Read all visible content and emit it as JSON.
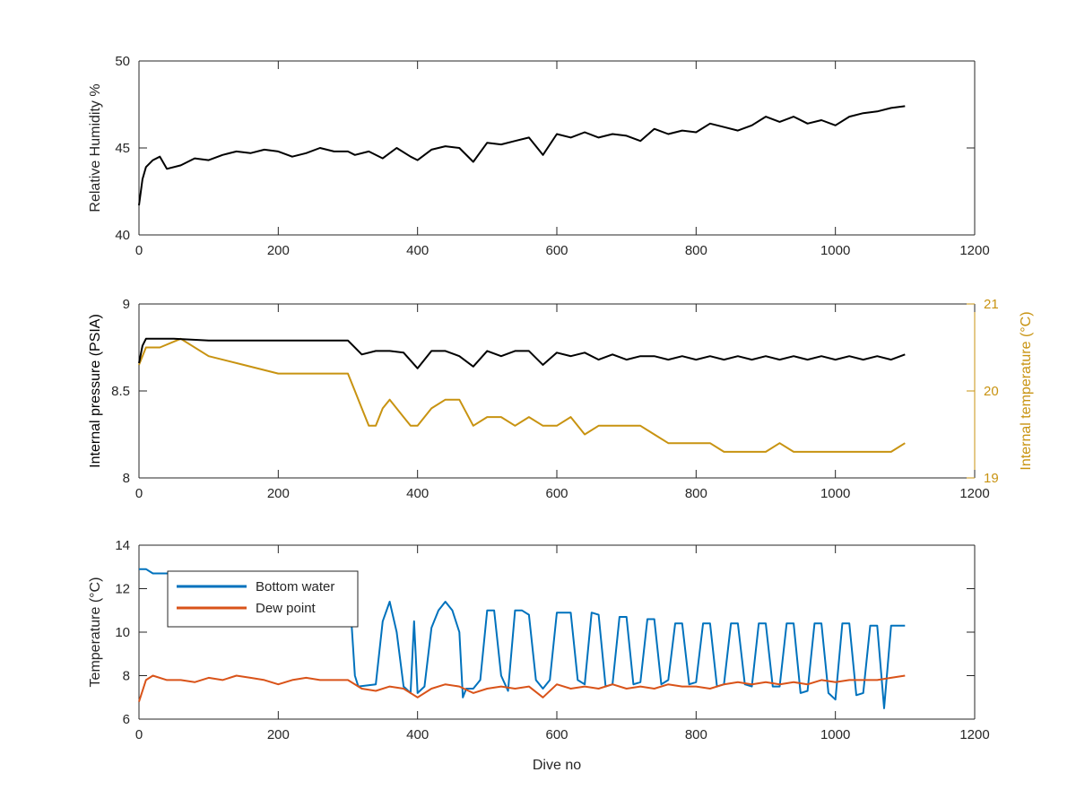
{
  "chart_data": [
    {
      "type": "line",
      "ylabel": "Relative Humidity %",
      "xlim": [
        0,
        1200
      ],
      "ylim": [
        40,
        50
      ],
      "xticks": [
        "0",
        "200",
        "400",
        "600",
        "800",
        "1000",
        "1200"
      ],
      "yticks": [
        "40",
        "45",
        "50"
      ],
      "series": [
        {
          "color": "#000000",
          "x": [
            0,
            5,
            10,
            20,
            30,
            40,
            60,
            80,
            100,
            120,
            140,
            160,
            180,
            200,
            220,
            240,
            260,
            280,
            300,
            310,
            330,
            350,
            370,
            390,
            400,
            420,
            440,
            460,
            480,
            500,
            520,
            540,
            560,
            580,
            600,
            620,
            640,
            660,
            680,
            700,
            720,
            740,
            760,
            780,
            800,
            820,
            840,
            860,
            880,
            900,
            920,
            940,
            960,
            980,
            1000,
            1020,
            1040,
            1060,
            1080,
            1100
          ],
          "y": [
            41.7,
            43.2,
            43.9,
            44.3,
            44.5,
            43.8,
            44.0,
            44.4,
            44.3,
            44.6,
            44.8,
            44.7,
            44.9,
            44.8,
            44.5,
            44.7,
            45.0,
            44.8,
            44.8,
            44.6,
            44.8,
            44.4,
            45.0,
            44.5,
            44.3,
            44.9,
            45.1,
            45.0,
            44.2,
            45.3,
            45.2,
            45.4,
            45.6,
            44.6,
            45.8,
            45.6,
            45.9,
            45.6,
            45.8,
            45.7,
            45.4,
            46.1,
            45.8,
            46.0,
            45.9,
            46.4,
            46.2,
            46.0,
            46.3,
            46.8,
            46.5,
            46.8,
            46.4,
            46.6,
            46.3,
            46.8,
            47.0,
            47.1,
            47.3,
            47.4
          ]
        }
      ]
    },
    {
      "type": "line",
      "ylabel": "Internal pressure (PSIA)",
      "y2label": "Internal temperature (°C)",
      "xlim": [
        0,
        1200
      ],
      "ylim": [
        8,
        9
      ],
      "y2lim": [
        19,
        21
      ],
      "xticks": [
        "0",
        "200",
        "400",
        "600",
        "800",
        "1000",
        "1200"
      ],
      "yticks": [
        "8",
        "8.5",
        "9"
      ],
      "y2ticks": [
        "19",
        "20",
        "21"
      ],
      "series": [
        {
          "axis": "left",
          "color": "#000000",
          "x": [
            0,
            5,
            10,
            50,
            100,
            150,
            200,
            250,
            300,
            320,
            340,
            360,
            380,
            400,
            420,
            440,
            460,
            480,
            500,
            520,
            540,
            560,
            580,
            600,
            620,
            640,
            660,
            680,
            700,
            720,
            740,
            760,
            780,
            800,
            820,
            840,
            860,
            880,
            900,
            920,
            940,
            960,
            980,
            1000,
            1020,
            1040,
            1060,
            1080,
            1100
          ],
          "y": [
            8.66,
            8.76,
            8.8,
            8.8,
            8.79,
            8.79,
            8.79,
            8.79,
            8.79,
            8.71,
            8.73,
            8.73,
            8.72,
            8.63,
            8.73,
            8.73,
            8.7,
            8.64,
            8.73,
            8.7,
            8.73,
            8.73,
            8.65,
            8.72,
            8.7,
            8.72,
            8.68,
            8.71,
            8.68,
            8.7,
            8.7,
            8.68,
            8.7,
            8.68,
            8.7,
            8.68,
            8.7,
            8.68,
            8.7,
            8.68,
            8.7,
            8.68,
            8.7,
            8.68,
            8.7,
            8.68,
            8.7,
            8.68,
            8.71
          ]
        },
        {
          "axis": "right",
          "color": "#C89311",
          "x": [
            0,
            10,
            30,
            60,
            100,
            150,
            200,
            250,
            300,
            310,
            320,
            330,
            340,
            350,
            360,
            380,
            390,
            400,
            420,
            440,
            460,
            480,
            500,
            520,
            540,
            560,
            580,
            600,
            620,
            640,
            660,
            680,
            700,
            720,
            740,
            760,
            780,
            800,
            820,
            840,
            860,
            880,
            900,
            920,
            940,
            960,
            980,
            1000,
            1020,
            1040,
            1060,
            1080,
            1100
          ],
          "y": [
            20.3,
            20.5,
            20.5,
            20.6,
            20.4,
            20.3,
            20.2,
            20.2,
            20.2,
            20.0,
            19.8,
            19.6,
            19.6,
            19.8,
            19.9,
            19.7,
            19.6,
            19.6,
            19.8,
            19.9,
            19.9,
            19.6,
            19.7,
            19.7,
            19.6,
            19.7,
            19.6,
            19.6,
            19.7,
            19.5,
            19.6,
            19.6,
            19.6,
            19.6,
            19.5,
            19.4,
            19.4,
            19.4,
            19.4,
            19.3,
            19.3,
            19.3,
            19.3,
            19.4,
            19.3,
            19.3,
            19.3,
            19.3,
            19.3,
            19.3,
            19.3,
            19.3,
            19.4
          ]
        }
      ]
    },
    {
      "type": "line",
      "xlabel": "Dive no",
      "ylabel": "Temperature (°C)",
      "xlim": [
        0,
        1200
      ],
      "ylim": [
        6,
        14
      ],
      "xticks": [
        "0",
        "200",
        "400",
        "600",
        "800",
        "1000",
        "1200"
      ],
      "yticks": [
        "6",
        "8",
        "10",
        "12",
        "14"
      ],
      "legend": "top-left",
      "series": [
        {
          "name": "Bottom water",
          "color": "#0072BD",
          "x": [
            0,
            10,
            20,
            40,
            50,
            300,
            305,
            310,
            315,
            340,
            350,
            360,
            370,
            380,
            390,
            395,
            400,
            410,
            420,
            430,
            440,
            450,
            460,
            465,
            470,
            480,
            490,
            500,
            510,
            520,
            530,
            540,
            550,
            560,
            570,
            580,
            590,
            600,
            610,
            620,
            630,
            640,
            650,
            660,
            670,
            680,
            690,
            700,
            710,
            720,
            730,
            740,
            750,
            760,
            770,
            780,
            790,
            800,
            810,
            820,
            830,
            840,
            850,
            860,
            870,
            880,
            890,
            900,
            910,
            920,
            930,
            940,
            950,
            960,
            970,
            980,
            990,
            1000,
            1010,
            1020,
            1030,
            1040,
            1050,
            1060,
            1070,
            1080,
            1090,
            1100
          ],
          "y": [
            12.9,
            12.9,
            12.7,
            12.7,
            12.7,
            11.0,
            10.5,
            8.0,
            7.5,
            7.6,
            10.5,
            11.4,
            10.0,
            7.5,
            7.2,
            10.5,
            7.2,
            7.5,
            10.2,
            11.0,
            11.4,
            11.0,
            10.0,
            7.0,
            7.4,
            7.4,
            7.8,
            11.0,
            11.0,
            8.0,
            7.3,
            11.0,
            11.0,
            10.8,
            7.8,
            7.4,
            7.8,
            10.9,
            10.9,
            10.9,
            7.8,
            7.6,
            10.9,
            10.8,
            7.5,
            7.6,
            10.7,
            10.7,
            7.6,
            7.7,
            10.6,
            10.6,
            7.6,
            7.8,
            10.4,
            10.4,
            7.6,
            7.7,
            10.4,
            10.4,
            7.5,
            7.6,
            10.4,
            10.4,
            7.6,
            7.5,
            10.4,
            10.4,
            7.5,
            7.5,
            10.4,
            10.4,
            7.2,
            7.3,
            10.4,
            10.4,
            7.2,
            6.9,
            10.4,
            10.4,
            7.1,
            7.2,
            10.3,
            10.3,
            6.5,
            10.3,
            10.3,
            10.3
          ]
        },
        {
          "name": "Dew point",
          "color": "#D95319",
          "x": [
            0,
            10,
            20,
            40,
            60,
            80,
            100,
            120,
            140,
            160,
            180,
            200,
            220,
            240,
            260,
            280,
            300,
            320,
            340,
            360,
            380,
            400,
            420,
            440,
            460,
            480,
            500,
            520,
            540,
            560,
            580,
            600,
            620,
            640,
            660,
            680,
            700,
            720,
            740,
            760,
            780,
            800,
            820,
            840,
            860,
            880,
            900,
            920,
            940,
            960,
            980,
            1000,
            1020,
            1040,
            1060,
            1080,
            1100
          ],
          "y": [
            6.8,
            7.8,
            8.0,
            7.8,
            7.8,
            7.7,
            7.9,
            7.8,
            8.0,
            7.9,
            7.8,
            7.6,
            7.8,
            7.9,
            7.8,
            7.8,
            7.8,
            7.4,
            7.3,
            7.5,
            7.4,
            7.0,
            7.4,
            7.6,
            7.5,
            7.2,
            7.4,
            7.5,
            7.4,
            7.5,
            7.0,
            7.6,
            7.4,
            7.5,
            7.4,
            7.6,
            7.4,
            7.5,
            7.4,
            7.6,
            7.5,
            7.5,
            7.4,
            7.6,
            7.7,
            7.6,
            7.7,
            7.6,
            7.7,
            7.6,
            7.8,
            7.7,
            7.8,
            7.8,
            7.8,
            7.9,
            8.0
          ]
        }
      ]
    }
  ]
}
